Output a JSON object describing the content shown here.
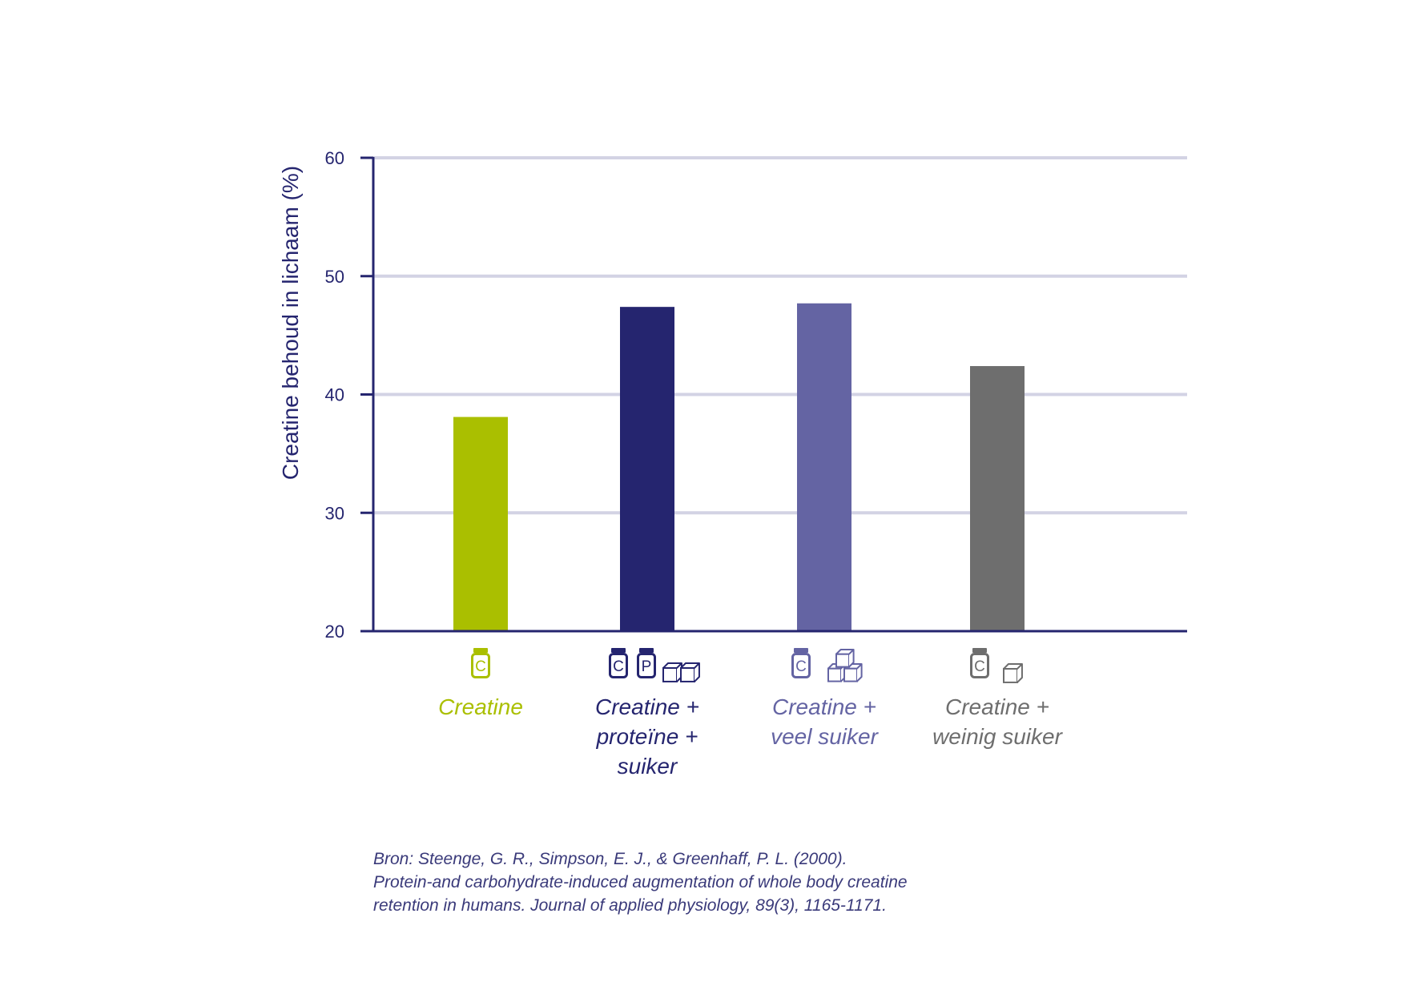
{
  "chart_data": {
    "type": "bar",
    "title": "",
    "xlabel": "",
    "ylabel": "Creatine behoud in lichaam (%)",
    "ylim": [
      20,
      60
    ],
    "yticks": [
      20,
      30,
      40,
      50,
      60
    ],
    "grid": true,
    "categories": [
      {
        "lines": [
          "Creatine"
        ],
        "color": "#aabf00",
        "icons": [
          "creatine-jar"
        ]
      },
      {
        "lines": [
          "Creatine +",
          "proteïne +",
          "suiker"
        ],
        "color": "#25256f",
        "icons": [
          "creatine-jar",
          "protein-jar",
          "sugar-cube",
          "sugar-cube"
        ]
      },
      {
        "lines": [
          "Creatine +",
          "veel suiker"
        ],
        "color": "#6464a3",
        "icons": [
          "creatine-jar",
          "sugar-cubes-stack"
        ]
      },
      {
        "lines": [
          "Creatine +",
          "weinig suiker"
        ],
        "color": "#6e6e6e",
        "icons": [
          "creatine-jar",
          "sugar-cube"
        ]
      }
    ],
    "values": [
      38.1,
      47.4,
      47.7,
      42.4
    ]
  },
  "icon_letters": {
    "creatine": "C",
    "protein": "P"
  },
  "source": {
    "lines": [
      "Bron: Steenge, G. R., Simpson, E. J., & Greenhaff, P. L. (2000).",
      "Protein-and carbohydrate-induced augmentation of whole body creatine",
      "retention in humans. Journal of applied physiology, 89(3), 1165-1171."
    ]
  },
  "colors": {
    "axis": "#25256f",
    "grid": "#d3d3e4",
    "text": "#25256f"
  }
}
